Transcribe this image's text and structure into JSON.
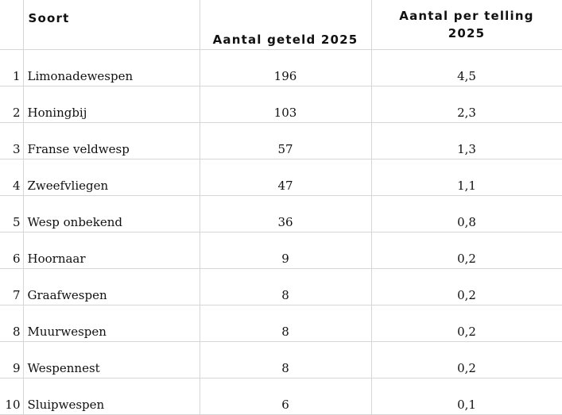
{
  "headers": {
    "soort": "Soort",
    "aantal_geteld": "Aantal geteld 2025",
    "aantal_per_telling_line1": "Aantal per telling",
    "aantal_per_telling_line2": "2025"
  },
  "rows": [
    {
      "rank": "1",
      "soort": "Limonadewespen",
      "geteld": "196",
      "per_telling": "4,5"
    },
    {
      "rank": "2",
      "soort": "Honingbij",
      "geteld": "103",
      "per_telling": "2,3"
    },
    {
      "rank": "3",
      "soort": "Franse veldwesp",
      "geteld": "57",
      "per_telling": "1,3"
    },
    {
      "rank": "4",
      "soort": "Zweefvliegen",
      "geteld": "47",
      "per_telling": "1,1"
    },
    {
      "rank": "5",
      "soort": "Wesp onbekend",
      "geteld": "36",
      "per_telling": "0,8"
    },
    {
      "rank": "6",
      "soort": "Hoornaar",
      "geteld": "9",
      "per_telling": "0,2"
    },
    {
      "rank": "7",
      "soort": "Graafwespen",
      "geteld": "8",
      "per_telling": "0,2"
    },
    {
      "rank": "8",
      "soort": "Muurwespen",
      "geteld": "8",
      "per_telling": "0,2"
    },
    {
      "rank": "9",
      "soort": "Wespennest",
      "geteld": "8",
      "per_telling": "0,2"
    },
    {
      "rank": "10",
      "soort": "Sluipwespen",
      "geteld": "6",
      "per_telling": "0,1"
    }
  ]
}
